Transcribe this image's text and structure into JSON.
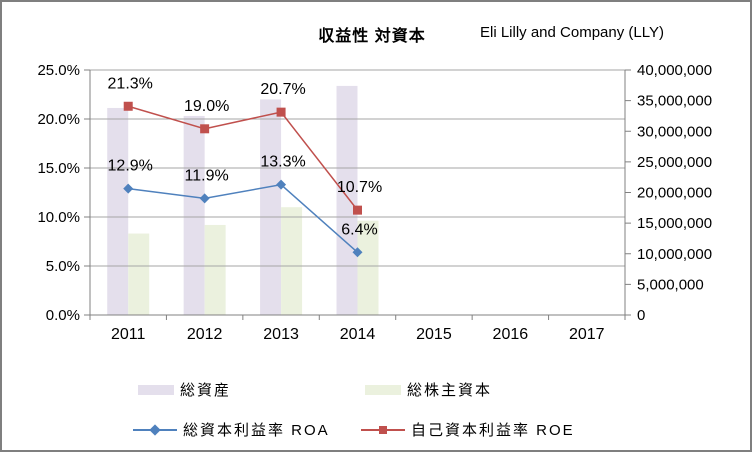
{
  "header": {
    "title": "収益性 対資本",
    "company": "Eli Lilly and Company (LLY)"
  },
  "colors": {
    "bar_total_assets": "#E4DFEC",
    "bar_equity": "#EBF1DE",
    "line_roa": "#4F81BD",
    "line_roe": "#C0504D",
    "gridline": "#A6A6A6",
    "axis_line": "#808080",
    "label_text": "#000000"
  },
  "chart_data": {
    "type": "combo",
    "title": "収益性 対資本",
    "subtitle": "Eli Lilly and Company (LLY)",
    "categories": [
      "2011",
      "2012",
      "2013",
      "2014",
      "2015",
      "2016",
      "2017"
    ],
    "series": [
      {
        "name": "総資産",
        "type": "bar",
        "axis": "right",
        "color": "#E4DFEC",
        "values": [
          33800000,
          32500000,
          35200000,
          37400000,
          null,
          null,
          null
        ]
      },
      {
        "name": "総株主資本",
        "type": "bar",
        "axis": "right",
        "color": "#EBF1DE",
        "values": [
          13300000,
          14700000,
          17600000,
          15400000,
          null,
          null,
          null
        ]
      },
      {
        "name": "総資本利益率 ROA",
        "type": "line",
        "axis": "left",
        "color": "#4F81BD",
        "marker": "diamond",
        "values": [
          12.9,
          11.9,
          13.3,
          6.4,
          null,
          null,
          null
        ],
        "labels": [
          "12.9%",
          "11.9%",
          "13.3%",
          "6.4%",
          "",
          "",
          ""
        ]
      },
      {
        "name": "自己資本利益率 ROE",
        "type": "line",
        "axis": "left",
        "color": "#C0504D",
        "marker": "square",
        "values": [
          21.3,
          19.0,
          20.7,
          10.7,
          null,
          null,
          null
        ],
        "labels": [
          "21.3%",
          "19.0%",
          "20.7%",
          "10.7%",
          "",
          "",
          ""
        ]
      }
    ],
    "left_axis": {
      "min": 0,
      "max": 25,
      "step": 5,
      "ticks": [
        "0.0%",
        "5.0%",
        "10.0%",
        "15.0%",
        "20.0%",
        "25.0%"
      ]
    },
    "right_axis": {
      "min": 0,
      "max": 40000000,
      "step": 5000000,
      "ticks": [
        "0",
        "5,000,000",
        "10,000,000",
        "15,000,000",
        "20,000,000",
        "25,000,000",
        "30,000,000",
        "35,000,000",
        "40,000,000"
      ]
    },
    "grid": true,
    "legend_position": "bottom"
  },
  "legend": {
    "items": [
      {
        "label": "総資産",
        "swatch": "bar",
        "color": "#E4DFEC"
      },
      {
        "label": "総株主資本",
        "swatch": "bar",
        "color": "#EBF1DE"
      },
      {
        "label": "総資本利益率 ROA",
        "swatch": "line-diamond",
        "color": "#4F81BD"
      },
      {
        "label": "自己資本利益率 ROE",
        "swatch": "line-square",
        "color": "#C0504D"
      }
    ]
  }
}
